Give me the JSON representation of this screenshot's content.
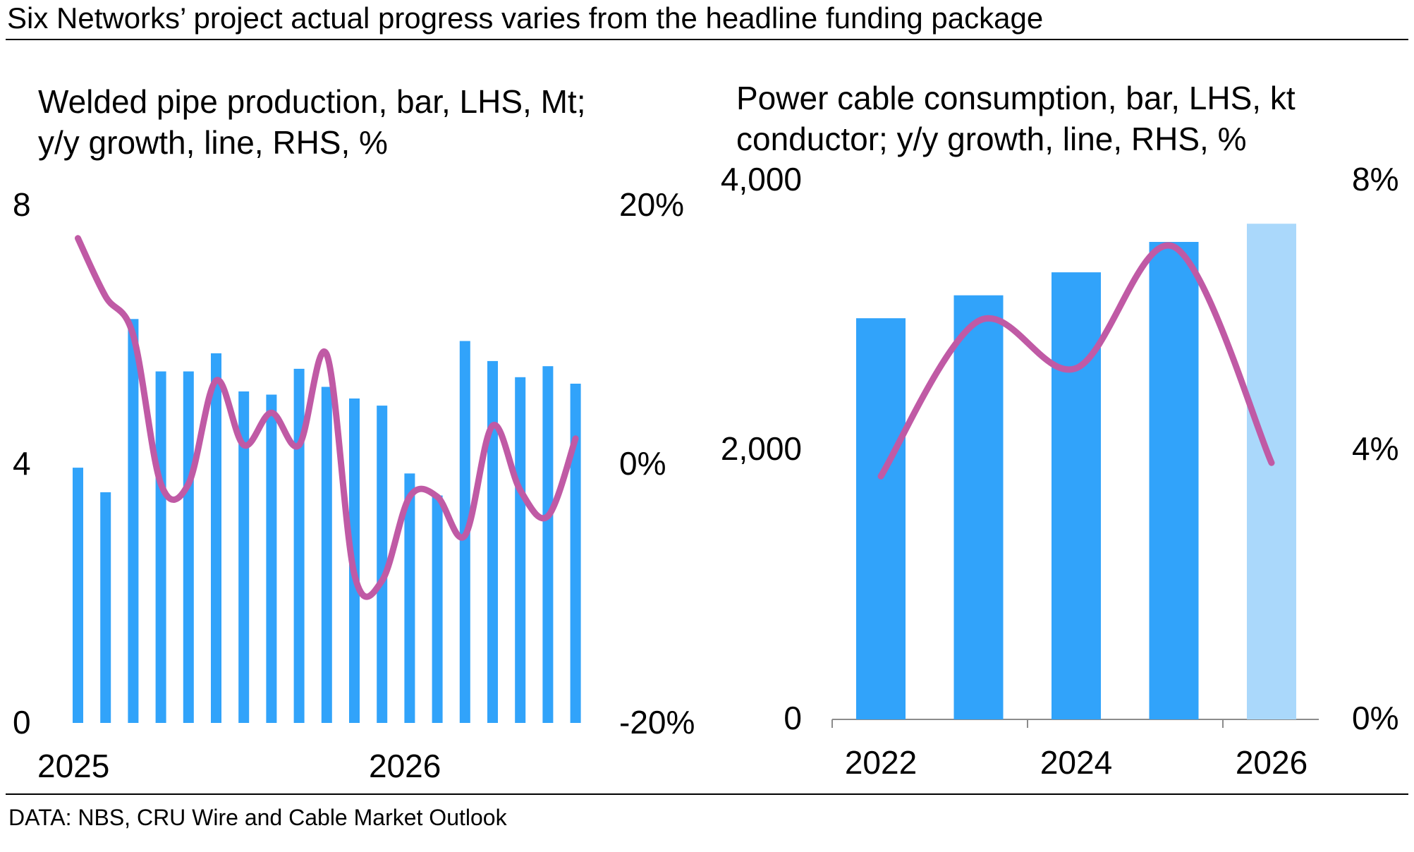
{
  "title": "Six Networks’ project actual progress varies from the headline funding package",
  "source": "DATA: NBS, CRU Wire and Cable Market Outlook",
  "colors": {
    "bar": "#31a3fa",
    "bar_forecast": "#aad8fb",
    "line": "#c05aa5",
    "rule": "#000000",
    "axis": "#8c8c8c"
  },
  "chart_data": [
    {
      "type": "bar",
      "title": "Welded pipe production, bar, LHS, Mt; y/y growth, line, RHS, %",
      "title_lines": [
        "Welded pipe production, bar, LHS, Mt;",
        "y/y growth, line, RHS, %"
      ],
      "x_tick_labels": [
        "2025",
        "2026"
      ],
      "ylim": [
        0,
        8
      ],
      "y_ticks": [
        0,
        4,
        8
      ],
      "y_tick_labels": [
        "0",
        "4",
        "8"
      ],
      "y2lim": [
        -20,
        20
      ],
      "y2_ticks": [
        -20,
        0,
        20
      ],
      "y2_tick_labels": [
        "-20%",
        "0%",
        "20%"
      ],
      "series": [
        {
          "name": "Welded pipe production",
          "type": "bar",
          "axis": "left",
          "values": [
            3.95,
            3.57,
            6.25,
            5.44,
            5.44,
            5.72,
            5.13,
            5.08,
            5.48,
            5.2,
            5.02,
            4.91,
            3.86,
            3.52,
            5.91,
            5.6,
            5.35,
            5.52,
            5.25
          ]
        },
        {
          "name": "y/y growth",
          "type": "line",
          "axis": "right",
          "values": [
            17.5,
            13.0,
            10.0,
            -1.5,
            -1.5,
            6.5,
            1.5,
            4.0,
            1.5,
            8.5,
            -8.5,
            -9.0,
            -2.5,
            -2.5,
            -5.5,
            3.0,
            -2.0,
            -4.0,
            2.0
          ]
        }
      ]
    },
    {
      "type": "bar",
      "title": "Power cable consumption, bar, LHS, kt conductor; y/y growth, line, RHS, %",
      "title_lines": [
        "Power cable consumption, bar, LHS, kt",
        "conductor; y/y growth, line, RHS, %"
      ],
      "categories": [
        "2022",
        "2023",
        "2024",
        "2025",
        "2026"
      ],
      "x_tick_labels": [
        "2022",
        "2024",
        "2026"
      ],
      "forecast_categories": [
        "2026"
      ],
      "ylim": [
        0,
        4000
      ],
      "y_ticks": [
        0,
        2000,
        4000
      ],
      "y_tick_labels": [
        "0",
        "2,000",
        "4,000"
      ],
      "y2lim": [
        0,
        8
      ],
      "y2_ticks": [
        0,
        4,
        8
      ],
      "y2_tick_labels": [
        "0%",
        "4%",
        "8%"
      ],
      "series": [
        {
          "name": "Power cable consumption",
          "type": "bar",
          "axis": "left",
          "values": [
            2970,
            3140,
            3310,
            3535,
            3670
          ]
        },
        {
          "name": "y/y growth",
          "type": "line",
          "axis": "right",
          "values": [
            3.6,
            5.9,
            5.2,
            7.0,
            3.8
          ]
        }
      ]
    }
  ]
}
